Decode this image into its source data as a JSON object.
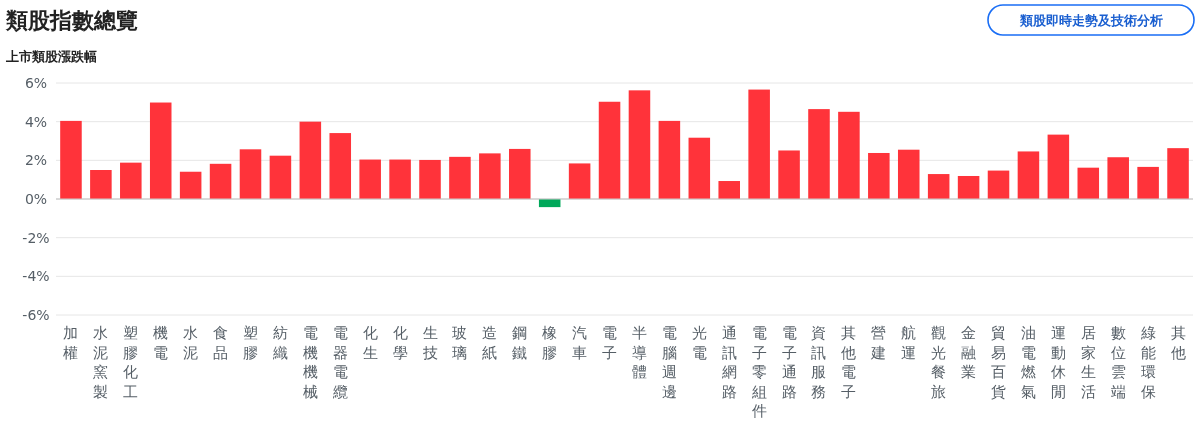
{
  "chart_data": {
    "type": "bar",
    "title": "類股指數總覽",
    "subtitle": "上市類股漲跌幅",
    "annotations": [
      "類股即時走勢及技術分析"
    ],
    "categories": [
      "加權",
      "水泥窯製",
      "塑膠化工",
      "機電",
      "水泥",
      "食品",
      "塑膠",
      "紡織",
      "電機機械",
      "電器電纜",
      "化生",
      "化學",
      "生技",
      "玻璃",
      "造紙",
      "鋼鐵",
      "橡膠",
      "汽車",
      "電子",
      "半導體",
      "電腦週邊",
      "光電",
      "通訊網路",
      "電子零組件",
      "電子通路",
      "資訊服務",
      "其他電子",
      "營建",
      "航運",
      "觀光餐旅",
      "金融業",
      "貿易百貨",
      "油電燃氣",
      "運動休閒",
      "居家生活",
      "數位雲端",
      "綠能環保",
      "其他"
    ],
    "values": [
      4.04,
      1.5,
      1.88,
      4.99,
      1.41,
      1.82,
      2.57,
      2.24,
      4.0,
      3.41,
      2.04,
      2.04,
      2.02,
      2.18,
      2.36,
      2.59,
      -0.42,
      1.84,
      5.03,
      5.62,
      4.04,
      3.17,
      0.93,
      5.66,
      2.51,
      4.65,
      4.51,
      2.38,
      2.55,
      1.29,
      1.19,
      1.47,
      2.46,
      3.33,
      1.62,
      2.16,
      1.66,
      2.63
    ],
    "colors": [
      "#ff333a",
      "#ff333a",
      "#ff333a",
      "#ff333a",
      "#ff333a",
      "#ff333a",
      "#ff333a",
      "#ff333a",
      "#ff333a",
      "#ff333a",
      "#ff333a",
      "#ff333a",
      "#ff333a",
      "#ff333a",
      "#ff333a",
      "#ff333a",
      "#00a85a",
      "#ff333a",
      "#ff333a",
      "#ff333a",
      "#ff333a",
      "#ff333a",
      "#ff333a",
      "#ff333a",
      "#ff333a",
      "#ff333a",
      "#ff333a",
      "#ff333a",
      "#ff333a",
      "#ff333a",
      "#ff333a",
      "#ff333a",
      "#ff333a",
      "#ff333a",
      "#ff333a",
      "#ff333a",
      "#ff333a",
      "#ff333a"
    ],
    "ylim": [
      -6,
      6
    ],
    "yticks": [
      {
        "value": 6,
        "label": "6%"
      },
      {
        "value": 4,
        "label": "4%"
      },
      {
        "value": 2,
        "label": "2%"
      },
      {
        "value": 0,
        "label": "0%"
      },
      {
        "value": -2,
        "label": "-2%"
      },
      {
        "value": -4,
        "label": "-4%"
      },
      {
        "value": -6,
        "label": "-6%"
      }
    ],
    "grid": true
  }
}
